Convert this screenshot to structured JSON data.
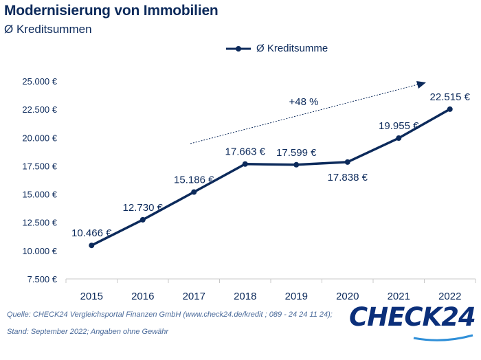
{
  "header": {
    "title": "Modernisierung von Immobilien",
    "subtitle": "Ø Kreditsummen"
  },
  "legend": {
    "label": "Ø Kreditsumme"
  },
  "annotation": {
    "growth": "+48 %"
  },
  "footer": {
    "source": "Quelle: CHECK24 Vergleichsportal Finanzen GmbH (www.check24.de/kredit ; 089 - 24 24 11 24);",
    "stand": "Stand: September 2022; Angaben ohne Gewähr"
  },
  "logo": {
    "text": "CHECK24"
  },
  "colors": {
    "series": "#0c2a5b",
    "grid": "#d0d0d0",
    "text": "#0c2a5b"
  },
  "chart_data": {
    "type": "line",
    "title": "Modernisierung von Immobilien",
    "subtitle": "Ø Kreditsummen",
    "categories": [
      "2015",
      "2016",
      "2017",
      "2018",
      "2019",
      "2020",
      "2021",
      "2022"
    ],
    "series": [
      {
        "name": "Ø Kreditsumme",
        "values": [
          10466,
          12730,
          15186,
          17663,
          17599,
          17838,
          19955,
          22515
        ],
        "labels": [
          "10.466 €",
          "12.730 €",
          "15.186 €",
          "17.663 €",
          "17.599 €",
          "17.838 €",
          "19.955 €",
          "22.515 €"
        ]
      }
    ],
    "yticks": [
      7500,
      10000,
      12500,
      15000,
      17500,
      20000,
      22500,
      25000
    ],
    "ytick_labels": [
      "7.500 €",
      "10.000 €",
      "12.500 €",
      "15.000 €",
      "17.500 €",
      "20.000 €",
      "22.500 €",
      "25.000 €"
    ],
    "ylim": [
      7500,
      25000
    ],
    "grid": false,
    "legend_position": "top"
  }
}
